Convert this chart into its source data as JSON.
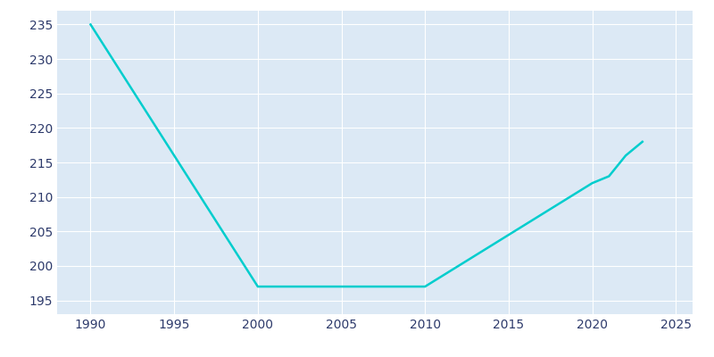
{
  "x": [
    1990,
    2000,
    2010,
    2020,
    2021,
    2022,
    2023
  ],
  "y": [
    235,
    197,
    197,
    212,
    213,
    216,
    218
  ],
  "line_color": "#00CDCD",
  "background_color": "#dce9f5",
  "figure_background": "#ffffff",
  "grid_color": "#ffffff",
  "text_color": "#2d3a6b",
  "xlim": [
    1988,
    2026
  ],
  "ylim": [
    193,
    237
  ],
  "xticks": [
    1990,
    1995,
    2000,
    2005,
    2010,
    2015,
    2020,
    2025
  ],
  "yticks": [
    195,
    200,
    205,
    210,
    215,
    220,
    225,
    230,
    235
  ],
  "linewidth": 1.8
}
